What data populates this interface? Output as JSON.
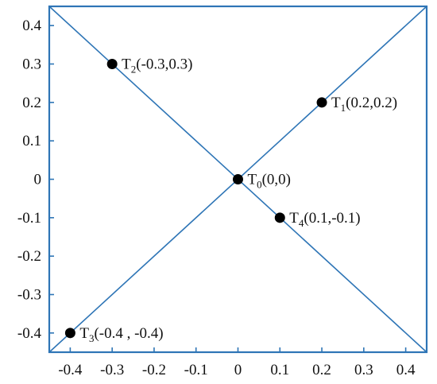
{
  "chart_data": {
    "type": "scatter",
    "xlim": [
      -0.45,
      0.45
    ],
    "ylim": [
      -0.45,
      0.45
    ],
    "x_ticks": [
      {
        "value": -0.4,
        "label": "-0.4"
      },
      {
        "value": -0.3,
        "label": "-0.3"
      },
      {
        "value": -0.2,
        "label": "-0.2"
      },
      {
        "value": -0.1,
        "label": "-0.1"
      },
      {
        "value": 0,
        "label": "0"
      },
      {
        "value": 0.1,
        "label": "0.1"
      },
      {
        "value": 0.2,
        "label": "0.2"
      },
      {
        "value": 0.3,
        "label": "0.3"
      },
      {
        "value": 0.4,
        "label": "0.4"
      }
    ],
    "y_ticks": [
      {
        "value": 0.4,
        "label": "0.4"
      },
      {
        "value": 0.3,
        "label": "0.3"
      },
      {
        "value": 0.2,
        "label": "0.2"
      },
      {
        "value": 0.1,
        "label": "0.1"
      },
      {
        "value": 0,
        "label": "0"
      },
      {
        "value": -0.1,
        "label": "-0.1"
      },
      {
        "value": -0.2,
        "label": "-0.2"
      },
      {
        "value": -0.3,
        "label": "-0.3"
      },
      {
        "value": -0.4,
        "label": "-0.4"
      }
    ],
    "lines": [
      {
        "from": [
          -0.45,
          -0.45
        ],
        "to": [
          0.45,
          0.45
        ],
        "color": "#2e75b6"
      },
      {
        "from": [
          -0.45,
          0.45
        ],
        "to": [
          0.45,
          -0.45
        ],
        "color": "#2e75b6"
      }
    ],
    "points": [
      {
        "x": 0.2,
        "y": 0.2,
        "label_main": "T",
        "label_sub": "1",
        "label_rest": "(0.2,0.2)"
      },
      {
        "x": -0.3,
        "y": 0.3,
        "label_main": "T",
        "label_sub": "2",
        "label_rest": "(-0.3,0.3)"
      },
      {
        "x": 0,
        "y": 0,
        "label_main": "T",
        "label_sub": "0",
        "label_rest": "(0,0)"
      },
      {
        "x": 0.1,
        "y": -0.1,
        "label_main": "T",
        "label_sub": "4",
        "label_rest": "(0.1,-0.1)"
      },
      {
        "x": -0.4,
        "y": -0.4,
        "label_main": "T",
        "label_sub": "3",
        "label_rest": "(-0.4 , -0.4)"
      }
    ],
    "point_color": "#000000",
    "grid": false,
    "legend": "none"
  }
}
